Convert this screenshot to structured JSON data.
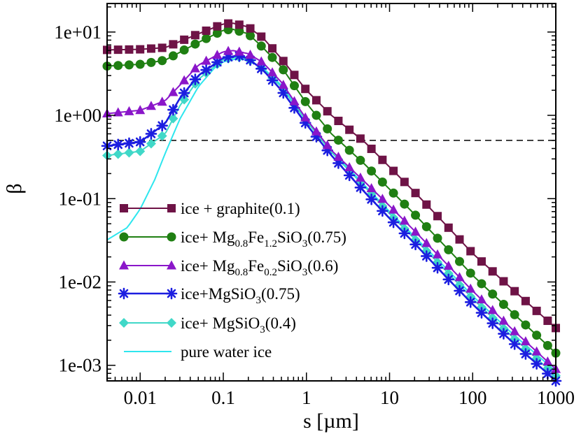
{
  "chart_data": {
    "type": "line",
    "xlabel": "s  [µm]",
    "ylabel": "β",
    "x_scale": "log",
    "y_scale": "log",
    "xlim": [
      0.004,
      1000
    ],
    "ylim": [
      0.00065,
      22
    ],
    "x_ticks": [
      {
        "value": 0.01,
        "label": "0.01"
      },
      {
        "value": 0.1,
        "label": "0.1"
      },
      {
        "value": 1,
        "label": "1"
      },
      {
        "value": 10,
        "label": "10"
      },
      {
        "value": 100,
        "label": "100"
      },
      {
        "value": 1000,
        "label": "1000"
      }
    ],
    "y_ticks": [
      {
        "value": 10,
        "label": "1e+01"
      },
      {
        "value": 1,
        "label": "1e+00"
      },
      {
        "value": 0.1,
        "label": "1e-01"
      },
      {
        "value": 0.01,
        "label": "1e-02"
      },
      {
        "value": 0.001,
        "label": "1e-03"
      }
    ],
    "reference_line": {
      "y": 0.5,
      "style": "dashed",
      "color": "#000000"
    },
    "legend_position": "bottom-left",
    "series": [
      {
        "name_parts": [
          {
            "text": "ice + graphite(0.1)",
            "style": "normal"
          }
        ],
        "color": "#6e1346",
        "marker": "square",
        "x": [
          0.004,
          0.01,
          0.02,
          0.05,
          0.1,
          0.13,
          0.2,
          0.3,
          0.5,
          1,
          2,
          5,
          10,
          20,
          50,
          100,
          300,
          1000
        ],
        "y": [
          6.1,
          6.2,
          6.5,
          9.5,
          12.5,
          12.8,
          11.5,
          8.5,
          4.8,
          2.0,
          1.0,
          0.48,
          0.24,
          0.12,
          0.046,
          0.022,
          0.0082,
          0.0028
        ]
      },
      {
        "name_parts": [
          {
            "text": "ice+ Mg",
            "style": "normal"
          },
          {
            "text": "0.8",
            "style": "sub"
          },
          {
            "text": "Fe",
            "style": "normal"
          },
          {
            "text": "1.2",
            "style": "sub"
          },
          {
            "text": "SiO",
            "style": "normal"
          },
          {
            "text": "3",
            "style": "sub"
          },
          {
            "text": "(0.75)",
            "style": "normal"
          }
        ],
        "color": "#1f7f12",
        "marker": "circle",
        "x": [
          0.004,
          0.01,
          0.02,
          0.05,
          0.1,
          0.13,
          0.2,
          0.3,
          0.5,
          1,
          2,
          5,
          10,
          20,
          50,
          100,
          300,
          1000
        ],
        "y": [
          3.9,
          4.1,
          4.6,
          7.5,
          10.5,
          10.8,
          9.5,
          6.5,
          3.8,
          1.4,
          0.6,
          0.26,
          0.13,
          0.065,
          0.025,
          0.012,
          0.0043,
          0.0014
        ]
      },
      {
        "name_parts": [
          {
            "text": "ice+ Mg",
            "style": "normal"
          },
          {
            "text": "0.8",
            "style": "sub"
          },
          {
            "text": "Fe",
            "style": "normal"
          },
          {
            "text": "0.2",
            "style": "sub"
          },
          {
            "text": "SiO",
            "style": "normal"
          },
          {
            "text": "3",
            "style": "sub"
          },
          {
            "text": "(0.6)",
            "style": "normal"
          }
        ],
        "color": "#8a16c9",
        "marker": "triangle",
        "x": [
          0.004,
          0.01,
          0.02,
          0.03,
          0.05,
          0.1,
          0.13,
          0.2,
          0.3,
          0.5,
          1,
          2,
          5,
          10,
          20,
          50,
          100,
          300,
          1000
        ],
        "y": [
          1.05,
          1.15,
          1.5,
          2.3,
          4.0,
          5.8,
          6.0,
          5.5,
          4.3,
          2.5,
          0.9,
          0.38,
          0.16,
          0.082,
          0.041,
          0.016,
          0.0078,
          0.0027,
          0.0009
        ]
      },
      {
        "name_parts": [
          {
            "text": "ice+MgSiO",
            "style": "normal"
          },
          {
            "text": "3",
            "style": "sub"
          },
          {
            "text": "(0.75)",
            "style": "normal"
          }
        ],
        "color": "#1c1ee0",
        "marker": "asterisk",
        "x": [
          0.004,
          0.01,
          0.02,
          0.03,
          0.05,
          0.1,
          0.15,
          0.2,
          0.3,
          0.5,
          1,
          2,
          5,
          10,
          20,
          50,
          100,
          300,
          1000
        ],
        "y": [
          0.43,
          0.48,
          0.8,
          1.6,
          3.0,
          4.9,
          5.2,
          4.8,
          3.5,
          2.0,
          0.78,
          0.33,
          0.12,
          0.058,
          0.029,
          0.011,
          0.0054,
          0.0019,
          0.00065
        ]
      },
      {
        "name_parts": [
          {
            "text": "ice+ MgSiO",
            "style": "normal"
          },
          {
            "text": "3",
            "style": "sub"
          },
          {
            "text": "(0.4)",
            "style": "normal"
          }
        ],
        "color": "#40d8c8",
        "marker": "diamond",
        "x": [
          0.004,
          0.01,
          0.02,
          0.03,
          0.05,
          0.1,
          0.15,
          0.2,
          0.3,
          0.5,
          1,
          2,
          5,
          10,
          20,
          50,
          100,
          300,
          1000
        ],
        "y": [
          0.33,
          0.37,
          0.6,
          1.3,
          2.7,
          4.7,
          5.0,
          4.7,
          3.6,
          2.2,
          0.85,
          0.36,
          0.14,
          0.066,
          0.033,
          0.013,
          0.0063,
          0.0022,
          0.00075
        ]
      },
      {
        "name_parts": [
          {
            "text": "pure water ice",
            "style": "normal"
          }
        ],
        "color": "#2ee6ee",
        "marker": "none",
        "x": [
          0.004,
          0.007,
          0.01,
          0.015,
          0.02,
          0.03,
          0.05,
          0.08,
          0.1,
          0.15,
          0.2,
          0.3,
          0.5,
          1,
          2,
          5,
          10,
          20,
          50,
          100,
          300,
          1000
        ],
        "y": [
          0.032,
          0.045,
          0.075,
          0.17,
          0.35,
          0.9,
          2.2,
          3.8,
          4.4,
          4.8,
          4.6,
          3.7,
          2.3,
          0.9,
          0.38,
          0.145,
          0.07,
          0.035,
          0.014,
          0.0068,
          0.0024,
          0.00085
        ]
      }
    ]
  }
}
